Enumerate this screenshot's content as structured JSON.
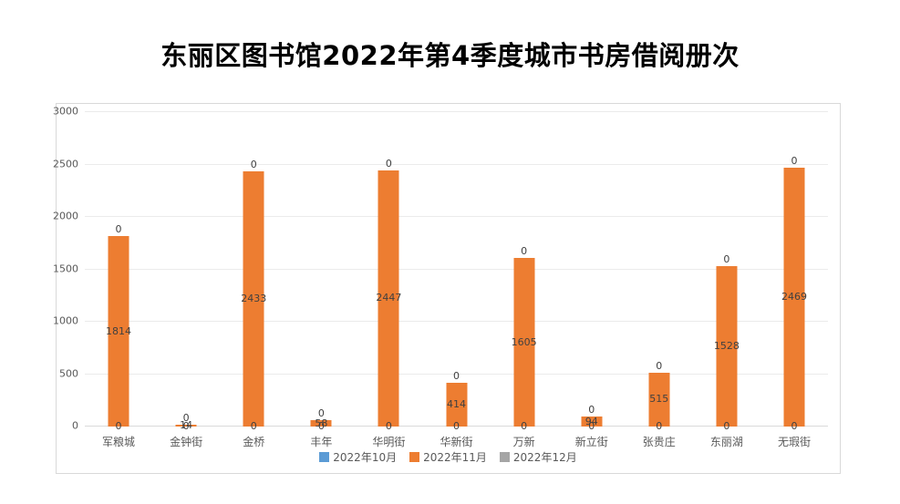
{
  "title": "东丽区图书馆2022年第4季度城市书房借阅册次",
  "colors": {
    "series_oct": "#5B9BD5",
    "series_nov": "#ED7D31",
    "series_dec": "#A5A5A5",
    "gridline": "#ebebeb",
    "axis_line": "#d9d9d9",
    "data_label": "#404040",
    "tick_label": "#595959",
    "title_text": "#000000"
  },
  "legend": {
    "items": [
      {
        "label": "2022年10月",
        "color": "#5B9BD5"
      },
      {
        "label": "2022年11月",
        "color": "#ED7D31"
      },
      {
        "label": "2022年12月",
        "color": "#A5A5A5"
      }
    ]
  },
  "chart_data": {
    "type": "bar",
    "stacked": true,
    "title": "东丽区图书馆2022年第4季度城市书房借阅册次",
    "categories": [
      "军粮城",
      "金钟街",
      "金桥",
      "丰年",
      "华明街",
      "华新街",
      "万新",
      "新立街",
      "张贵庄",
      "东丽湖",
      "无瑕街"
    ],
    "series": [
      {
        "name": "2022年10月",
        "color": "#5B9BD5",
        "values": [
          0,
          0,
          0,
          0,
          0,
          0,
          0,
          0,
          0,
          0,
          0
        ]
      },
      {
        "name": "2022年11月",
        "color": "#ED7D31",
        "values": [
          1814,
          14,
          2433,
          58,
          2447,
          414,
          1605,
          94,
          515,
          1528,
          2469
        ]
      },
      {
        "name": "2022年12月",
        "color": "#A5A5A5",
        "values": [
          0,
          0,
          0,
          0,
          0,
          0,
          0,
          0,
          0,
          0,
          0
        ]
      }
    ],
    "xlabel": "",
    "ylabel": "",
    "ylim": [
      0,
      3000
    ],
    "y_ticks": [
      0,
      500,
      1000,
      1500,
      2000,
      2500,
      3000
    ],
    "grid": true,
    "data_labels": true,
    "legend_position": "bottom"
  }
}
